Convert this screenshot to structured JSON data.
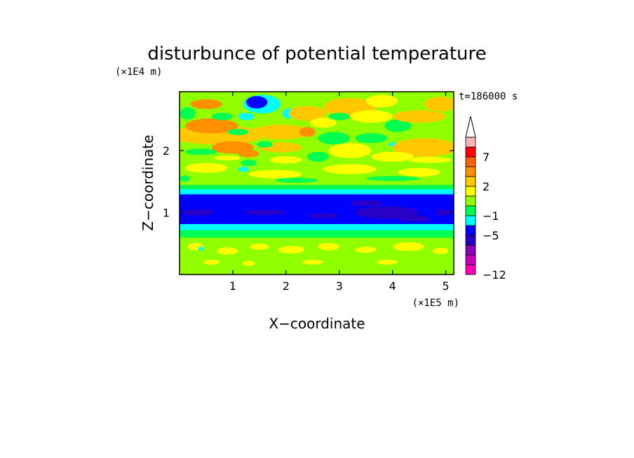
{
  "chart_data": {
    "type": "heatmap",
    "title": "disturbunce of potential temperature",
    "xlabel": "X−coordinate",
    "ylabel": "Z−coordinate",
    "x_unit": "(×1E5 m)",
    "y_unit": "(×1E4 m)",
    "time_label": "t=186000 s",
    "xlim": [
      0,
      5.15
    ],
    "ylim": [
      0,
      2.95
    ],
    "x_ticks": [
      1,
      2,
      3,
      4,
      5
    ],
    "y_ticks": [
      1,
      2
    ],
    "colorbar": {
      "levels": [
        -12,
        -11,
        -9,
        -7,
        -5,
        -3,
        -1,
        0,
        1,
        2,
        3,
        5,
        7,
        9,
        11
      ],
      "tick_values": [
        -12,
        -5,
        -1,
        2,
        7
      ],
      "tick_labels": [
        "−12",
        "−5",
        "−1",
        "2",
        "7"
      ],
      "colors": [
        "#ff00b4",
        "#c800b4",
        "#8c00b4",
        "#2800c8",
        "#0000ff",
        "#00ffff",
        "#00ff50",
        "#90ff00",
        "#ffff00",
        "#ffc800",
        "#ff9100",
        "#ff6400",
        "#ff0000",
        "#ffb4b4"
      ],
      "extend_max": true
    },
    "bands": [
      {
        "z0": 0.0,
        "z1": 0.05,
        "value": 0.5
      },
      {
        "z0": 0.05,
        "z1": 0.6,
        "value": 0.5
      },
      {
        "z0": 0.6,
        "z1": 0.72,
        "value": -0.5
      },
      {
        "z0": 0.72,
        "z1": 0.82,
        "value": -2
      },
      {
        "z0": 0.82,
        "z1": 1.3,
        "value": -4
      },
      {
        "z0": 1.3,
        "z1": 1.38,
        "value": -2
      },
      {
        "z0": 1.38,
        "z1": 1.45,
        "value": -0.5
      },
      {
        "z0": 1.45,
        "z1": 2.95,
        "value": 0.5
      }
    ],
    "blobs": [
      {
        "x": 0.3,
        "z": 0.45,
        "rx": 0.15,
        "rz": 0.06,
        "value": 1.5
      },
      {
        "x": 0.9,
        "z": 0.38,
        "rx": 0.2,
        "rz": 0.06,
        "value": 1.5
      },
      {
        "x": 1.5,
        "z": 0.45,
        "rx": 0.18,
        "rz": 0.05,
        "value": 1.5
      },
      {
        "x": 2.1,
        "z": 0.4,
        "rx": 0.25,
        "rz": 0.06,
        "value": 1.5
      },
      {
        "x": 2.8,
        "z": 0.45,
        "rx": 0.2,
        "rz": 0.06,
        "value": 1.5
      },
      {
        "x": 3.5,
        "z": 0.4,
        "rx": 0.2,
        "rz": 0.05,
        "value": 1.5
      },
      {
        "x": 4.3,
        "z": 0.45,
        "rx": 0.3,
        "rz": 0.07,
        "value": 1.5
      },
      {
        "x": 4.9,
        "z": 0.38,
        "rx": 0.15,
        "rz": 0.05,
        "value": 1.5
      },
      {
        "x": 0.6,
        "z": 0.2,
        "rx": 0.15,
        "rz": 0.04,
        "value": 1.5
      },
      {
        "x": 1.3,
        "z": 0.18,
        "rx": 0.12,
        "rz": 0.04,
        "value": 1.5
      },
      {
        "x": 2.5,
        "z": 0.2,
        "rx": 0.2,
        "rz": 0.04,
        "value": 1.5
      },
      {
        "x": 3.9,
        "z": 0.2,
        "rx": 0.2,
        "rz": 0.04,
        "value": 1.5
      },
      {
        "x": 0.5,
        "z": 1.72,
        "rx": 0.4,
        "rz": 0.08,
        "value": 1.5
      },
      {
        "x": 1.8,
        "z": 1.62,
        "rx": 0.5,
        "rz": 0.07,
        "value": 1.5
      },
      {
        "x": 3.2,
        "z": 1.7,
        "rx": 0.5,
        "rz": 0.08,
        "value": 1.5
      },
      {
        "x": 4.5,
        "z": 1.65,
        "rx": 0.4,
        "rz": 0.07,
        "value": 1.5
      },
      {
        "x": 0.1,
        "z": 1.55,
        "rx": 0.1,
        "rz": 0.05,
        "value": -0.5
      },
      {
        "x": 2.2,
        "z": 1.52,
        "rx": 0.4,
        "rz": 0.04,
        "value": -0.5
      },
      {
        "x": 4.0,
        "z": 1.55,
        "rx": 0.5,
        "rz": 0.04,
        "value": -0.5
      },
      {
        "x": 0.7,
        "z": 2.25,
        "rx": 0.9,
        "rz": 0.15,
        "value": 2.5
      },
      {
        "x": 0.6,
        "z": 2.4,
        "rx": 0.5,
        "rz": 0.12,
        "value": 4
      },
      {
        "x": 1.0,
        "z": 2.05,
        "rx": 0.4,
        "rz": 0.1,
        "value": 4
      },
      {
        "x": 0.5,
        "z": 2.75,
        "rx": 0.3,
        "rz": 0.08,
        "value": 4
      },
      {
        "x": 1.3,
        "z": 1.95,
        "rx": 0.2,
        "rz": 0.06,
        "value": 4
      },
      {
        "x": 0.15,
        "z": 2.6,
        "rx": 0.15,
        "rz": 0.1,
        "value": -0.5
      },
      {
        "x": 0.8,
        "z": 2.55,
        "rx": 0.2,
        "rz": 0.06,
        "value": -0.5
      },
      {
        "x": 1.1,
        "z": 2.3,
        "rx": 0.2,
        "rz": 0.05,
        "value": -0.5
      },
      {
        "x": 1.3,
        "z": 1.8,
        "rx": 0.15,
        "rz": 0.05,
        "value": -0.5
      },
      {
        "x": 1.55,
        "z": 2.75,
        "rx": 0.35,
        "rz": 0.15,
        "value": -2
      },
      {
        "x": 1.45,
        "z": 2.78,
        "rx": 0.2,
        "rz": 0.1,
        "value": -4
      },
      {
        "x": 1.25,
        "z": 2.55,
        "rx": 0.15,
        "rz": 0.06,
        "value": -2
      },
      {
        "x": 2.05,
        "z": 2.6,
        "rx": 0.12,
        "rz": 0.08,
        "value": -2
      },
      {
        "x": 1.95,
        "z": 2.35,
        "rx": 0.1,
        "rz": 0.05,
        "value": -2
      },
      {
        "x": 1.2,
        "z": 1.7,
        "rx": 0.1,
        "rz": 0.04,
        "value": -2
      },
      {
        "x": 1.9,
        "z": 2.3,
        "rx": 0.55,
        "rz": 0.12,
        "value": 2.5
      },
      {
        "x": 1.9,
        "z": 2.05,
        "rx": 0.4,
        "rz": 0.08,
        "value": 2.5
      },
      {
        "x": 2.4,
        "z": 2.6,
        "rx": 0.35,
        "rz": 0.12,
        "value": 2.5
      },
      {
        "x": 2.0,
        "z": 1.85,
        "rx": 0.3,
        "rz": 0.06,
        "value": 1.5
      },
      {
        "x": 2.4,
        "z": 2.3,
        "rx": 0.15,
        "rz": 0.08,
        "value": 4
      },
      {
        "x": 2.7,
        "z": 2.45,
        "rx": 0.25,
        "rz": 0.08,
        "value": 1.5
      },
      {
        "x": 3.2,
        "z": 2.7,
        "rx": 0.5,
        "rz": 0.15,
        "value": 2.5
      },
      {
        "x": 3.6,
        "z": 2.55,
        "rx": 0.4,
        "rz": 0.1,
        "value": 1.5
      },
      {
        "x": 3.8,
        "z": 2.8,
        "rx": 0.3,
        "rz": 0.1,
        "value": 1.5
      },
      {
        "x": 4.1,
        "z": 2.4,
        "rx": 0.25,
        "rz": 0.1,
        "value": -0.5
      },
      {
        "x": 4.0,
        "z": 2.1,
        "rx": 0.08,
        "rz": 0.03,
        "value": -2
      },
      {
        "x": 4.6,
        "z": 2.05,
        "rx": 0.6,
        "rz": 0.15,
        "value": 2.5
      },
      {
        "x": 4.5,
        "z": 2.55,
        "rx": 0.5,
        "rz": 0.1,
        "value": 2.5
      },
      {
        "x": 4.9,
        "z": 2.75,
        "rx": 0.3,
        "rz": 0.12,
        "value": 2.5
      },
      {
        "x": 3.2,
        "z": 2.0,
        "rx": 0.4,
        "rz": 0.12,
        "value": 1.5
      },
      {
        "x": 4.0,
        "z": 1.9,
        "rx": 0.4,
        "rz": 0.08,
        "value": 1.5
      },
      {
        "x": 4.7,
        "z": 1.85,
        "rx": 0.4,
        "rz": 0.05,
        "value": 1.5
      },
      {
        "x": 2.9,
        "z": 2.2,
        "rx": 0.3,
        "rz": 0.1,
        "value": -0.5
      },
      {
        "x": 2.6,
        "z": 1.9,
        "rx": 0.2,
        "rz": 0.08,
        "value": -0.5
      },
      {
        "x": 3.6,
        "z": 2.2,
        "rx": 0.3,
        "rz": 0.08,
        "value": -0.5
      },
      {
        "x": 3.0,
        "z": 2.55,
        "rx": 0.2,
        "rz": 0.06,
        "value": -0.5
      },
      {
        "x": 1.6,
        "z": 2.1,
        "rx": 0.15,
        "rz": 0.05,
        "value": -0.5
      },
      {
        "x": 0.4,
        "z": 1.98,
        "rx": 0.3,
        "rz": 0.05,
        "value": -0.5
      },
      {
        "x": 0.9,
        "z": 1.88,
        "rx": 0.25,
        "rz": 0.04,
        "value": 1.5
      },
      {
        "x": 3.9,
        "z": 1.0,
        "rx": 0.6,
        "rz": 0.1,
        "value": -6
      },
      {
        "x": 3.5,
        "z": 1.15,
        "rx": 0.3,
        "rz": 0.05,
        "value": -6
      },
      {
        "x": 4.4,
        "z": 0.9,
        "rx": 0.3,
        "rz": 0.05,
        "value": -6
      },
      {
        "x": 0.35,
        "z": 1.0,
        "rx": 0.3,
        "rz": 0.05,
        "value": -6
      },
      {
        "x": 1.6,
        "z": 1.0,
        "rx": 0.4,
        "rz": 0.04,
        "value": -6
      },
      {
        "x": 2.7,
        "z": 0.95,
        "rx": 0.3,
        "rz": 0.04,
        "value": -6
      },
      {
        "x": 4.95,
        "z": 1.0,
        "rx": 0.15,
        "rz": 0.05,
        "value": -6
      },
      {
        "x": 0.4,
        "z": 0.42,
        "rx": 0.05,
        "rz": 0.03,
        "value": -2
      }
    ]
  }
}
